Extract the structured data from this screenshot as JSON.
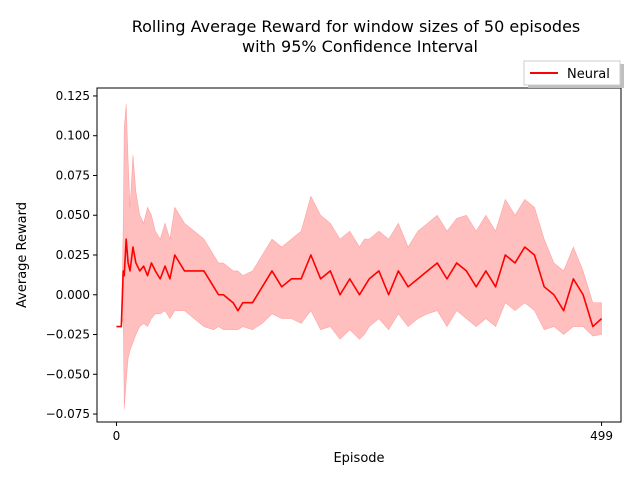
{
  "chart_data": {
    "type": "line",
    "title_line1": "Rolling Average Reward for window sizes of 50 episodes",
    "title_line2": "with 95% Confidence Interval",
    "xlabel": "Episode",
    "ylabel": "Average Reward",
    "xlim": [
      -20,
      519
    ],
    "ylim": [
      -0.08,
      0.13
    ],
    "x_ticks": [
      0,
      499
    ],
    "x_tick_labels": [
      "0",
      "499"
    ],
    "y_ticks": [
      -0.075,
      -0.05,
      -0.025,
      0.0,
      0.025,
      0.05,
      0.075,
      0.1,
      0.125
    ],
    "y_tick_labels": [
      "−0.075",
      "−0.050",
      "−0.025",
      "0.000",
      "0.025",
      "0.050",
      "0.075",
      "0.100",
      "0.125"
    ],
    "grid": false,
    "legend_placement": "top-right, outside plot area",
    "colors": {
      "line": "#ff0000",
      "band": "#ff0000",
      "band_opacity": 0.25
    },
    "series": [
      {
        "name": "Neural",
        "x": [
          0,
          5,
          7,
          8,
          10,
          12,
          14,
          17,
          20,
          24,
          28,
          32,
          36,
          40,
          45,
          50,
          55,
          60,
          70,
          80,
          90,
          100,
          105,
          110,
          120,
          125,
          130,
          140,
          150,
          160,
          170,
          180,
          190,
          200,
          210,
          220,
          230,
          240,
          250,
          255,
          260,
          270,
          280,
          290,
          300,
          310,
          320,
          330,
          340,
          350,
          360,
          370,
          380,
          390,
          400,
          410,
          420,
          430,
          440,
          450,
          460,
          470,
          480,
          490,
          499
        ],
        "mean": [
          -0.02,
          -0.02,
          0.015,
          0.012,
          0.035,
          0.02,
          0.015,
          0.03,
          0.02,
          0.015,
          0.018,
          0.012,
          0.02,
          0.015,
          0.01,
          0.018,
          0.01,
          0.025,
          0.015,
          0.015,
          0.015,
          0.005,
          0.0,
          0.0,
          -0.005,
          -0.01,
          -0.005,
          -0.005,
          0.005,
          0.015,
          0.005,
          0.01,
          0.01,
          0.025,
          0.01,
          0.015,
          0.0,
          0.01,
          0.0,
          0.005,
          0.01,
          0.015,
          0.0,
          0.015,
          0.005,
          0.01,
          0.015,
          0.02,
          0.01,
          0.02,
          0.015,
          0.005,
          0.015,
          0.005,
          0.025,
          0.02,
          0.03,
          0.025,
          0.005,
          0.0,
          -0.01,
          0.01,
          0.0,
          -0.02,
          -0.015
        ],
        "upper": [
          -0.02,
          -0.02,
          0.045,
          0.105,
          0.12,
          0.085,
          0.055,
          0.088,
          0.065,
          0.05,
          0.045,
          0.055,
          0.05,
          0.04,
          0.035,
          0.045,
          0.035,
          0.055,
          0.045,
          0.04,
          0.035,
          0.025,
          0.02,
          0.02,
          0.015,
          0.015,
          0.012,
          0.015,
          0.025,
          0.035,
          0.03,
          0.035,
          0.04,
          0.062,
          0.05,
          0.045,
          0.035,
          0.04,
          0.03,
          0.035,
          0.035,
          0.04,
          0.035,
          0.045,
          0.03,
          0.04,
          0.045,
          0.05,
          0.04,
          0.048,
          0.05,
          0.04,
          0.05,
          0.04,
          0.06,
          0.05,
          0.06,
          0.055,
          0.035,
          0.02,
          0.015,
          0.03,
          0.015,
          -0.005,
          -0.005
        ],
        "lower": [
          -0.02,
          -0.02,
          -0.015,
          -0.072,
          -0.055,
          -0.04,
          -0.035,
          -0.03,
          -0.025,
          -0.02,
          -0.018,
          -0.02,
          -0.015,
          -0.012,
          -0.012,
          -0.01,
          -0.015,
          -0.01,
          -0.01,
          -0.015,
          -0.02,
          -0.022,
          -0.02,
          -0.022,
          -0.022,
          -0.022,
          -0.02,
          -0.022,
          -0.018,
          -0.012,
          -0.015,
          -0.015,
          -0.018,
          -0.01,
          -0.022,
          -0.02,
          -0.028,
          -0.022,
          -0.028,
          -0.025,
          -0.02,
          -0.015,
          -0.022,
          -0.012,
          -0.02,
          -0.015,
          -0.012,
          -0.01,
          -0.02,
          -0.01,
          -0.015,
          -0.02,
          -0.015,
          -0.02,
          -0.005,
          -0.01,
          -0.005,
          -0.01,
          -0.022,
          -0.02,
          -0.025,
          -0.02,
          -0.02,
          -0.026,
          -0.025
        ]
      }
    ]
  }
}
